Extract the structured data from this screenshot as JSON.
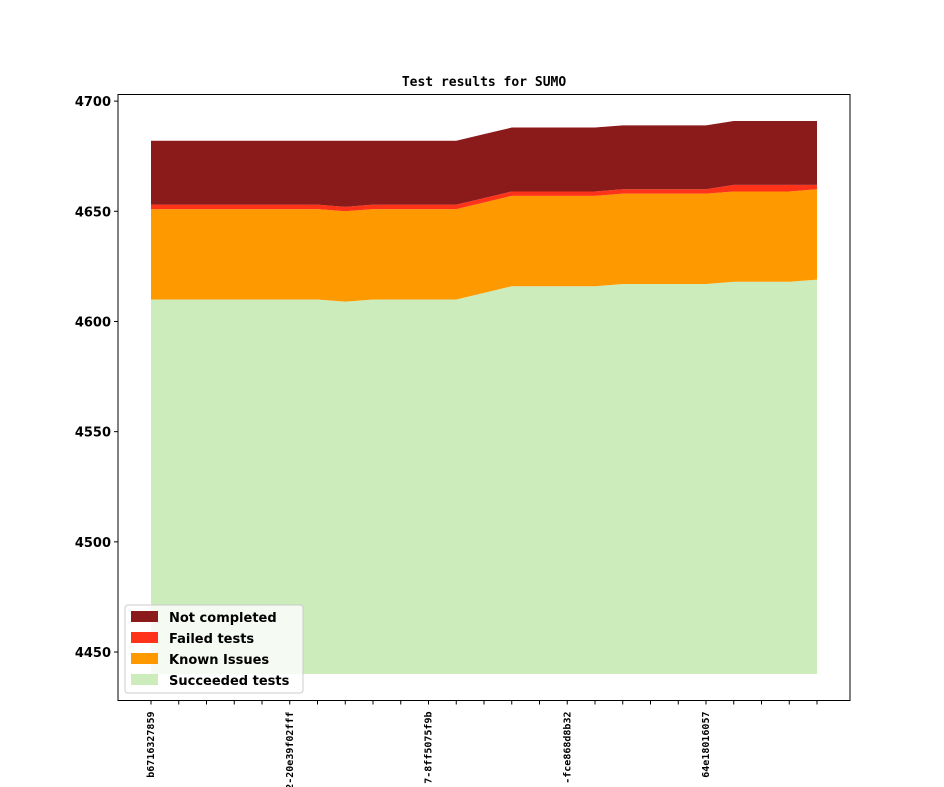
{
  "chart_data": {
    "type": "area",
    "stacked": true,
    "title": "Test results for SUMO",
    "xlabel": "",
    "ylabel": "",
    "ylim": [
      4428,
      4703
    ],
    "yticks": [
      4450,
      4500,
      4550,
      4600,
      4650,
      4700
    ],
    "baseline": 4440,
    "point_count": 25,
    "x_tick_labels": [
      {
        "index": 0,
        "label": "b6716327859"
      },
      {
        "index": 5,
        "label": "2-20e39f02fff"
      },
      {
        "index": 10,
        "label": "7-8ff5075f9b"
      },
      {
        "index": 15,
        "label": "-fce868d8b32"
      },
      {
        "index": 20,
        "label": "64e18016057"
      }
    ],
    "legend_position": "lower-left",
    "series": [
      {
        "name": "Succeeded tests",
        "color": "#cdecbc",
        "values": [
          4610,
          4610,
          4610,
          4610,
          4610,
          4610,
          4610,
          4609,
          4610,
          4610,
          4610,
          4610,
          4613,
          4616,
          4616,
          4616,
          4616,
          4617,
          4617,
          4617,
          4617,
          4618,
          4618,
          4618,
          4619
        ]
      },
      {
        "name": "Known Issues",
        "color": "#ff9900",
        "values": [
          4651,
          4651,
          4651,
          4651,
          4651,
          4651,
          4651,
          4650,
          4651,
          4651,
          4651,
          4651,
          4654,
          4657,
          4657,
          4657,
          4657,
          4658,
          4658,
          4658,
          4658,
          4659,
          4659,
          4659,
          4660
        ]
      },
      {
        "name": "Failed tests",
        "color": "#ff3319",
        "values": [
          4653,
          4653,
          4653,
          4653,
          4653,
          4653,
          4653,
          4652,
          4653,
          4653,
          4653,
          4653,
          4656,
          4659,
          4659,
          4659,
          4659,
          4660,
          4660,
          4660,
          4660,
          4662,
          4662,
          4662,
          4662
        ]
      },
      {
        "name": "Not completed",
        "color": "#8b1a1a",
        "values": [
          4682,
          4682,
          4682,
          4682,
          4682,
          4682,
          4682,
          4682,
          4682,
          4682,
          4682,
          4682,
          4685,
          4688,
          4688,
          4688,
          4688,
          4689,
          4689,
          4689,
          4689,
          4691,
          4691,
          4691,
          4691
        ]
      }
    ],
    "legend_order": [
      "Not completed",
      "Failed tests",
      "Known Issues",
      "Succeeded tests"
    ]
  }
}
